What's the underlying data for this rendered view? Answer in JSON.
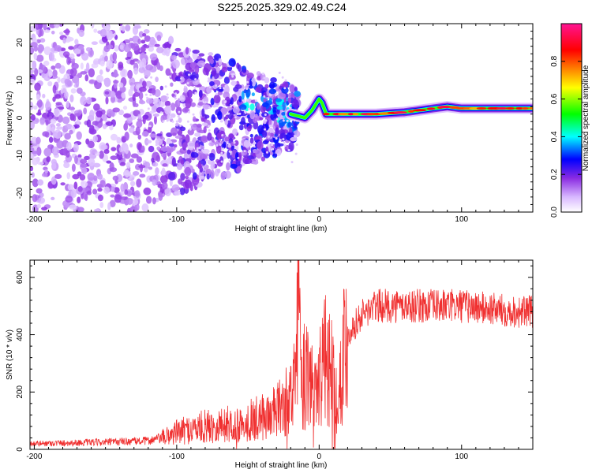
{
  "title": "S225.2025.329.02.49.C24",
  "chart_data": [
    {
      "type": "heatmap",
      "title": "S225.2025.329.02.49.C24",
      "xlabel": "Height of straight line (km)",
      "ylabel": "Frequency (Hz)",
      "xlim": [
        -203,
        150
      ],
      "ylim": [
        -25,
        25
      ],
      "xticks": [
        -200,
        -100,
        0,
        100
      ],
      "yticks": [
        -20,
        -10,
        0,
        10,
        20
      ],
      "colorbar": {
        "label": "Normalized spectral amplitude",
        "range": [
          0,
          1
        ],
        "ticks": [
          "0.0",
          "0.2",
          "0.4",
          "0.6",
          "0.8"
        ],
        "tick_values": [
          0,
          0.2,
          0.4,
          0.6,
          0.8
        ],
        "colors": [
          "#ffffff",
          "#d8b8ff",
          "#8a2be2",
          "#0000ff",
          "#00ffff",
          "#00ff00",
          "#ffff00",
          "#ff8000",
          "#ff0000",
          "#ff1493"
        ]
      },
      "ridge_line": {
        "x": [
          -20,
          -15,
          -10,
          -5,
          0,
          2,
          5,
          10,
          20,
          40,
          60,
          80,
          90,
          100,
          120,
          150
        ],
        "y": [
          1,
          0.5,
          0,
          2,
          5,
          4,
          1,
          1,
          1,
          1,
          1.5,
          2.5,
          3,
          2.5,
          2.5,
          2.5
        ]
      },
      "noise_extent_x": [
        -203,
        -15
      ]
    },
    {
      "type": "line",
      "xlabel": "Height of straight line (km)",
      "ylabel": "SNR (10 * v/v)",
      "xlim": [
        -203,
        150
      ],
      "ylim": [
        0,
        660
      ],
      "xticks": [
        -200,
        -100,
        0,
        100
      ],
      "yticks": [
        0,
        200,
        400,
        600
      ],
      "series": [
        {
          "name": "SNR",
          "color": "#f03030",
          "x": [
            -203,
            -150,
            -120,
            -110,
            -100,
            -80,
            -60,
            -40,
            -30,
            -20,
            -16,
            -15,
            -13,
            -10,
            -5,
            0,
            5,
            10,
            13,
            15,
            20,
            30,
            40,
            60,
            80,
            100,
            120,
            140,
            150
          ],
          "y": [
            20,
            25,
            30,
            40,
            60,
            80,
            90,
            110,
            130,
            180,
            250,
            480,
            300,
            250,
            230,
            250,
            320,
            260,
            160,
            300,
            400,
            470,
            500,
            500,
            500,
            500,
            490,
            480,
            480
          ]
        }
      ]
    }
  ]
}
